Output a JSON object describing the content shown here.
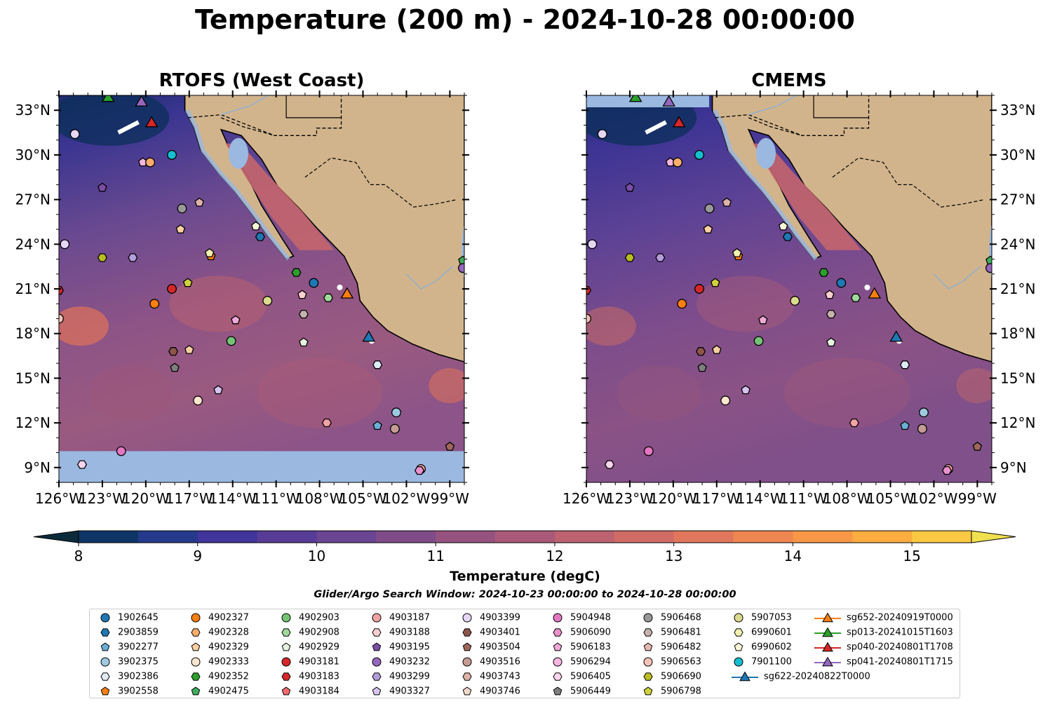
{
  "title": "Temperature (200 m) - 2024-10-28 00:00:00",
  "panels": [
    {
      "title": "RTOFS (West Coast)"
    },
    {
      "title": "CMEMS"
    }
  ],
  "map": {
    "lon_range": [
      -126,
      -98
    ],
    "lat_range": [
      8,
      34
    ],
    "lon_ticks": [
      "126°W",
      "123°W",
      "120°W",
      "117°W",
      "114°W",
      "111°W",
      "108°W",
      "105°W",
      "102°W",
      "99°W"
    ],
    "lat_ticks": [
      "9°N",
      "12°N",
      "15°N",
      "18°N",
      "21°N",
      "24°N",
      "27°N",
      "30°N",
      "33°N"
    ],
    "land_color": "#d2b48c",
    "shelf_color": "#9ab8e0"
  },
  "colorbar": {
    "label": "Temperature (degC)",
    "ticks": [
      "8",
      "9",
      "10",
      "11",
      "12",
      "13",
      "14",
      "15"
    ],
    "colors": [
      "#0b2a3a",
      "#0f3566",
      "#263a8c",
      "#41349a",
      "#573c97",
      "#6a4591",
      "#7f4b88",
      "#965380",
      "#aa5a79",
      "#bd6270",
      "#d06b66",
      "#e0775c",
      "#ee8651",
      "#f79747",
      "#fbad3f",
      "#fac842",
      "#f0e050"
    ]
  },
  "search_window": "Glider/Argo Search Window: 2024-10-23 00:00:00 to 2024-10-28 00:00:00",
  "legend": [
    {
      "label": "1902645",
      "color": "#1f77b4",
      "shape": "circle"
    },
    {
      "label": "2903859",
      "color": "#1f77b4",
      "shape": "hexagon"
    },
    {
      "label": "3902277",
      "color": "#6baed6",
      "shape": "pentagon"
    },
    {
      "label": "3902375",
      "color": "#9ecae1",
      "shape": "circle"
    },
    {
      "label": "3902386",
      "color": "#deebf7",
      "shape": "hexagon"
    },
    {
      "label": "3902558",
      "color": "#ff7f0e",
      "shape": "pentagon"
    },
    {
      "label": "4902327",
      "color": "#ff7f0e",
      "shape": "circle"
    },
    {
      "label": "4902328",
      "color": "#fdae6b",
      "shape": "hexagon"
    },
    {
      "label": "4902329",
      "color": "#fdd0a2",
      "shape": "pentagon"
    },
    {
      "label": "4902333",
      "color": "#fee6ce",
      "shape": "circle"
    },
    {
      "label": "4902352",
      "color": "#2ca02c",
      "shape": "hexagon"
    },
    {
      "label": "4902475",
      "color": "#41ab5d",
      "shape": "pentagon"
    },
    {
      "label": "4902903",
      "color": "#74c476",
      "shape": "circle"
    },
    {
      "label": "4902908",
      "color": "#a1d99b",
      "shape": "hexagon"
    },
    {
      "label": "4902929",
      "color": "#e5f5e0",
      "shape": "pentagon"
    },
    {
      "label": "4903181",
      "color": "#d62728",
      "shape": "circle"
    },
    {
      "label": "4903183",
      "color": "#d62728",
      "shape": "hexagon"
    },
    {
      "label": "4903184",
      "color": "#f16b6b",
      "shape": "pentagon"
    },
    {
      "label": "4903187",
      "color": "#f4a3a3",
      "shape": "circle"
    },
    {
      "label": "4903188",
      "color": "#fcd0d0",
      "shape": "hexagon"
    },
    {
      "label": "4903195",
      "color": "#7b4fa8",
      "shape": "pentagon"
    },
    {
      "label": "4903232",
      "color": "#9467bd",
      "shape": "circle"
    },
    {
      "label": "4903299",
      "color": "#b39ddb",
      "shape": "hexagon"
    },
    {
      "label": "4903327",
      "color": "#d7c4f0",
      "shape": "pentagon"
    },
    {
      "label": "4903399",
      "color": "#e6d6f6",
      "shape": "circle"
    },
    {
      "label": "4903401",
      "color": "#8c564b",
      "shape": "hexagon"
    },
    {
      "label": "4903504",
      "color": "#a0685a",
      "shape": "pentagon"
    },
    {
      "label": "4903516",
      "color": "#c49c94",
      "shape": "circle"
    },
    {
      "label": "4903743",
      "color": "#deb3a8",
      "shape": "hexagon"
    },
    {
      "label": "4903746",
      "color": "#f3d8cc",
      "shape": "pentagon"
    },
    {
      "label": "5904948",
      "color": "#e377c2",
      "shape": "circle"
    },
    {
      "label": "5906090",
      "color": "#e992cc",
      "shape": "hexagon"
    },
    {
      "label": "5906183",
      "color": "#f0a8d8",
      "shape": "pentagon"
    },
    {
      "label": "5906294",
      "color": "#f7b6e0",
      "shape": "circle"
    },
    {
      "label": "5906405",
      "color": "#fbd6ec",
      "shape": "hexagon"
    },
    {
      "label": "5906449",
      "color": "#7f7f7f",
      "shape": "pentagon"
    },
    {
      "label": "5906468",
      "color": "#999999",
      "shape": "circle"
    },
    {
      "label": "5906481",
      "color": "#c7b3ad",
      "shape": "hexagon"
    },
    {
      "label": "5906482",
      "color": "#e6b8b0",
      "shape": "pentagon"
    },
    {
      "label": "5906563",
      "color": "#f6c3b8",
      "shape": "circle"
    },
    {
      "label": "5906690",
      "color": "#bcbd22",
      "shape": "hexagon"
    },
    {
      "label": "5906798",
      "color": "#cfd33c",
      "shape": "pentagon"
    },
    {
      "label": "5907053",
      "color": "#dbdb8d",
      "shape": "circle"
    },
    {
      "label": "6990601",
      "color": "#f3f1b0",
      "shape": "hexagon"
    },
    {
      "label": "6990602",
      "color": "#fbf9d8",
      "shape": "pentagon"
    },
    {
      "label": "7901100",
      "color": "#17becf",
      "shape": "circle"
    },
    {
      "label": "sg622-20240822T0000",
      "color": "#1f77b4",
      "shape": "triangle"
    },
    {
      "label": "sg652-20240919T0000",
      "color": "#ff7f0e",
      "shape": "triangle"
    },
    {
      "label": "sp013-20241015T1603",
      "color": "#2ca02c",
      "shape": "triangle"
    },
    {
      "label": "sp040-20240801T1708",
      "color": "#d62728",
      "shape": "triangle"
    },
    {
      "label": "sp041-20240801T1715",
      "color": "#9467bd",
      "shape": "triangle"
    }
  ],
  "markers": [
    {
      "lon": -124.9,
      "lat": 31.4,
      "color": "#e6d6f6",
      "shape": "circle"
    },
    {
      "lon": -123.0,
      "lat": 27.8,
      "color": "#7b4fa8",
      "shape": "pentagon"
    },
    {
      "lon": -120.2,
      "lat": 29.5,
      "color": "#f7b6e0",
      "shape": "pentagon"
    },
    {
      "lon": -119.7,
      "lat": 29.5,
      "color": "#fdae6b",
      "shape": "circle"
    },
    {
      "lon": -118.2,
      "lat": 30.0,
      "color": "#17becf",
      "shape": "circle"
    },
    {
      "lon": -117.5,
      "lat": 26.4,
      "color": "#999999",
      "shape": "circle"
    },
    {
      "lon": -116.3,
      "lat": 26.8,
      "color": "#deb3a8",
      "shape": "pentagon"
    },
    {
      "lon": -117.6,
      "lat": 25.0,
      "color": "#fdd0a2",
      "shape": "pentagon"
    },
    {
      "lon": -125.6,
      "lat": 24.0,
      "color": "#e6d6f6",
      "shape": "circle"
    },
    {
      "lon": -123.0,
      "lat": 23.1,
      "color": "#bcbd22",
      "shape": "hexagon"
    },
    {
      "lon": -120.9,
      "lat": 23.1,
      "color": "#b39ddb",
      "shape": "hexagon"
    },
    {
      "lon": -115.5,
      "lat": 23.2,
      "color": "#ff7f0e",
      "shape": "pentagon"
    },
    {
      "lon": -115.6,
      "lat": 23.4,
      "color": "#f3f1b0",
      "shape": "pentagon"
    },
    {
      "lon": -112.4,
      "lat": 25.2,
      "color": "#fbf9d8",
      "shape": "pentagon"
    },
    {
      "lon": -112.1,
      "lat": 24.5,
      "color": "#1f77b4",
      "shape": "hexagon"
    },
    {
      "lon": -117.1,
      "lat": 21.4,
      "color": "#cfd33c",
      "shape": "pentagon"
    },
    {
      "lon": -118.2,
      "lat": 21.0,
      "color": "#d62728",
      "shape": "circle"
    },
    {
      "lon": -119.4,
      "lat": 20.0,
      "color": "#ff7f0e",
      "shape": "circle"
    },
    {
      "lon": -126.0,
      "lat": 20.9,
      "color": "#d62728",
      "shape": "hexagon"
    },
    {
      "lon": -126.0,
      "lat": 19.0,
      "color": "#f6c3b8",
      "shape": "circle"
    },
    {
      "lon": -109.6,
      "lat": 22.1,
      "color": "#2ca02c",
      "shape": "hexagon"
    },
    {
      "lon": -108.4,
      "lat": 21.4,
      "color": "#1f77b4",
      "shape": "circle"
    },
    {
      "lon": -107.4,
      "lat": 20.4,
      "color": "#a1d99b",
      "shape": "hexagon"
    },
    {
      "lon": -109.2,
      "lat": 20.6,
      "color": "#fcd0d0",
      "shape": "pentagon"
    },
    {
      "lon": -111.6,
      "lat": 20.2,
      "color": "#dbdb8d",
      "shape": "circle"
    },
    {
      "lon": -109.1,
      "lat": 19.3,
      "color": "#c7b3ad",
      "shape": "hexagon"
    },
    {
      "lon": -113.8,
      "lat": 18.9,
      "color": "#f0a8d8",
      "shape": "pentagon"
    },
    {
      "lon": -114.1,
      "lat": 17.5,
      "color": "#74c476",
      "shape": "circle"
    },
    {
      "lon": -109.1,
      "lat": 17.4,
      "color": "#e5f5e0",
      "shape": "pentagon"
    },
    {
      "lon": -118.1,
      "lat": 16.8,
      "color": "#8c564b",
      "shape": "hexagon"
    },
    {
      "lon": -117.0,
      "lat": 16.9,
      "color": "#fdd0a2",
      "shape": "pentagon"
    },
    {
      "lon": -118.0,
      "lat": 15.7,
      "color": "#7f7f7f",
      "shape": "pentagon"
    },
    {
      "lon": -104.0,
      "lat": 15.9,
      "color": "#deebf7",
      "shape": "hexagon"
    },
    {
      "lon": -116.4,
      "lat": 13.5,
      "color": "#fee6ce",
      "shape": "circle"
    },
    {
      "lon": -115.0,
      "lat": 14.2,
      "color": "#d7c4f0",
      "shape": "pentagon"
    },
    {
      "lon": -107.5,
      "lat": 12.0,
      "color": "#f4a3a3",
      "shape": "hexagon"
    },
    {
      "lon": -104.0,
      "lat": 11.8,
      "color": "#6baed6",
      "shape": "pentagon"
    },
    {
      "lon": -102.8,
      "lat": 11.6,
      "color": "#c49c94",
      "shape": "circle"
    },
    {
      "lon": -102.7,
      "lat": 12.7,
      "color": "#9ecae1",
      "shape": "circle"
    },
    {
      "lon": -99.0,
      "lat": 10.4,
      "color": "#a0685a",
      "shape": "pentagon"
    },
    {
      "lon": -101.0,
      "lat": 8.9,
      "color": "#f4a3a3",
      "shape": "circle"
    },
    {
      "lon": -101.1,
      "lat": 8.8,
      "color": "#e992cc",
      "shape": "hexagon"
    },
    {
      "lon": -124.4,
      "lat": 9.2,
      "color": "#fbd6ec",
      "shape": "hexagon"
    },
    {
      "lon": -121.7,
      "lat": 10.1,
      "color": "#e377c2",
      "shape": "circle"
    },
    {
      "lon": -98.1,
      "lat": 22.9,
      "color": "#41ab5d",
      "shape": "pentagon"
    },
    {
      "lon": -98.1,
      "lat": 22.4,
      "color": "#9467bd",
      "shape": "circle"
    },
    {
      "lon": -104.6,
      "lat": 17.8,
      "color": "#1f77b4",
      "shape": "triangle"
    },
    {
      "lon": -106.1,
      "lat": 20.7,
      "color": "#ff7f0e",
      "shape": "triangle"
    },
    {
      "lon": -122.6,
      "lat": 33.9,
      "color": "#2ca02c",
      "shape": "triangle"
    },
    {
      "lon": -119.6,
      "lat": 32.2,
      "color": "#d62728",
      "shape": "triangle"
    },
    {
      "lon": -120.3,
      "lat": 33.6,
      "color": "#9467bd",
      "shape": "triangle"
    }
  ]
}
